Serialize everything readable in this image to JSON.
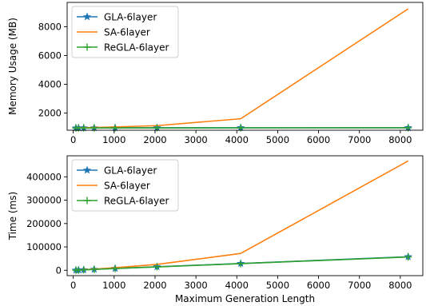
{
  "chart_data": [
    {
      "type": "line",
      "xlabel": "",
      "ylabel": "Memory Usage (MB)",
      "xlim": [
        -150,
        8550
      ],
      "ylim": [
        800,
        9700
      ],
      "xticks": [
        0,
        1000,
        2000,
        3000,
        4000,
        5000,
        6000,
        7000,
        8000
      ],
      "xtick_labels": [
        "0",
        "1000",
        "2000",
        "3000",
        "4000",
        "5000",
        "6000",
        "7000",
        "8000"
      ],
      "yticks": [
        2000,
        4000,
        6000,
        8000
      ],
      "ytick_labels": [
        "2000",
        "4000",
        "6000",
        "8000"
      ],
      "legend": "top-left",
      "grid": false,
      "series": [
        {
          "name": "GLA-6layer",
          "color": "#1f77b4",
          "marker": "star",
          "x": [
            64,
            128,
            256,
            512,
            1024,
            2048,
            4096,
            8192
          ],
          "y": [
            960,
            962,
            963,
            965,
            968,
            970,
            972,
            975
          ]
        },
        {
          "name": "SA-6layer",
          "color": "#ff7f0e",
          "marker": "none",
          "x": [
            64,
            128,
            256,
            512,
            1024,
            2048,
            4096,
            8192
          ],
          "y": [
            960,
            965,
            975,
            990,
            1030,
            1120,
            1600,
            9250
          ]
        },
        {
          "name": "ReGLA-6layer",
          "color": "#2ca02c",
          "marker": "plus",
          "x": [
            64,
            128,
            256,
            512,
            1024,
            2048,
            4096,
            8192
          ],
          "y": [
            955,
            957,
            958,
            960,
            962,
            965,
            967,
            970
          ]
        }
      ]
    },
    {
      "type": "line",
      "xlabel": "Maximum Generation Length",
      "ylabel": "Time (ms)",
      "xlim": [
        -150,
        8550
      ],
      "ylim": [
        -23000,
        490000
      ],
      "xticks": [
        0,
        1000,
        2000,
        3000,
        4000,
        5000,
        6000,
        7000,
        8000
      ],
      "xtick_labels": [
        "0",
        "1000",
        "2000",
        "3000",
        "4000",
        "5000",
        "6000",
        "7000",
        "8000"
      ],
      "yticks": [
        0,
        100000,
        200000,
        300000,
        400000
      ],
      "ytick_labels": [
        "0",
        "100000",
        "200000",
        "300000",
        "400000"
      ],
      "legend": "top-left",
      "grid": false,
      "series": [
        {
          "name": "GLA-6layer",
          "color": "#1f77b4",
          "marker": "star",
          "x": [
            64,
            128,
            256,
            512,
            1024,
            2048,
            4096,
            8192
          ],
          "y": [
            500,
            1000,
            2000,
            4000,
            8000,
            15000,
            29000,
            58000
          ]
        },
        {
          "name": "SA-6layer",
          "color": "#ff7f0e",
          "marker": "none",
          "x": [
            64,
            128,
            256,
            512,
            1024,
            2048,
            4096,
            8192
          ],
          "y": [
            600,
            1200,
            2500,
            5000,
            11000,
            25000,
            72000,
            468000
          ]
        },
        {
          "name": "ReGLA-6layer",
          "color": "#2ca02c",
          "marker": "plus",
          "x": [
            64,
            128,
            256,
            512,
            1024,
            2048,
            4096,
            8192
          ],
          "y": [
            450,
            900,
            1800,
            3700,
            7500,
            14500,
            28500,
            57000
          ]
        }
      ]
    }
  ]
}
